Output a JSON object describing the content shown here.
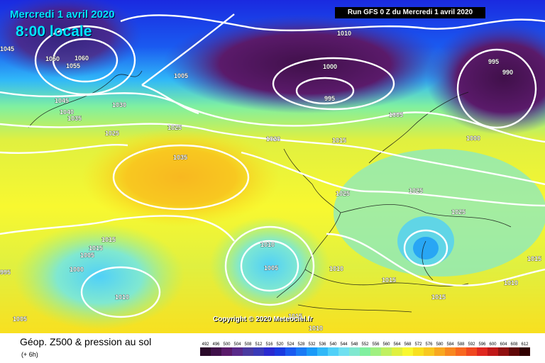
{
  "header": {
    "date": "Mercredi 1 avril 2020",
    "time": "8:00 locale",
    "run_info": "Run GFS 0 Z du Mercredi 1 avril 2020"
  },
  "footer": {
    "product": "Géop. Z500 & pression au sol",
    "step": "(+ 6h)",
    "copyright": "Copyright © 2020 Meteociel.fr"
  },
  "legend": {
    "values": [
      "492",
      "496",
      "500",
      "504",
      "508",
      "512",
      "516",
      "520",
      "524",
      "528",
      "532",
      "536",
      "540",
      "544",
      "548",
      "552",
      "556",
      "560",
      "564",
      "568",
      "572",
      "576",
      "580",
      "584",
      "588",
      "592",
      "596",
      "600",
      "604",
      "608",
      "612"
    ],
    "colors": [
      "#2a0a2a",
      "#40104a",
      "#5a1a6a",
      "#5a2a8a",
      "#4a3aa0",
      "#3a3ab8",
      "#2a2ad0",
      "#1a3ae0",
      "#1a5af0",
      "#1a7af5",
      "#1a9af8",
      "#30b8f8",
      "#50d0f8",
      "#70e0f0",
      "#80e8d0",
      "#80f0a0",
      "#a0f080",
      "#c0f060",
      "#e0f040",
      "#f8f830",
      "#f8e020",
      "#f8c820",
      "#f8a820",
      "#f88820",
      "#f86820",
      "#f04820",
      "#e02820",
      "#c01818",
      "#901010",
      "#600808",
      "#300000"
    ]
  },
  "pressure_labels": [
    "1010",
    "1060",
    "1055",
    "1050",
    "1045",
    "1005",
    "1000",
    "995",
    "995",
    "990",
    "1045",
    "1040",
    "1035",
    "1030",
    "1025",
    "1025",
    "1020",
    "1015",
    "1005",
    "1000",
    "1035",
    "1025",
    "1025",
    "1025",
    "1015",
    "1015",
    "1010",
    "1005",
    "1000",
    "995",
    "1010",
    "1005",
    "1010",
    "1015",
    "1015",
    "1010",
    "1005",
    "1015",
    "1015",
    "1010"
  ]
}
